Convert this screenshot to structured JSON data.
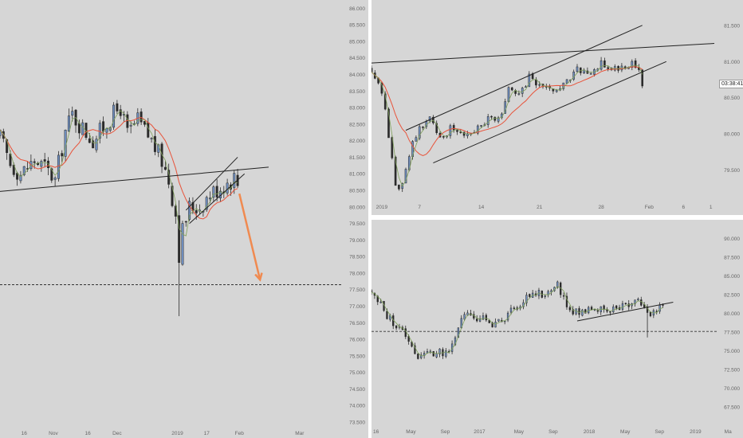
{
  "colors": {
    "background": "#d6d6d6",
    "up_candle": "#6f8fc0",
    "down_candle": "#2b2b2b",
    "ma_fast": "#7fa05a",
    "ma_slow": "#e8533a",
    "trendline": "#222222",
    "arrow": "#f08a50",
    "axis_text": "#666666",
    "dashed_level": "#333333"
  },
  "chart_data": [
    {
      "id": "left",
      "type": "candlestick",
      "title": "",
      "ylim": [
        73.5,
        86.25
      ],
      "y_ticks": [
        "73.500",
        "74.000",
        "74.500",
        "75.000",
        "75.500",
        "76.000",
        "76.500",
        "77.000",
        "77.500",
        "78.000",
        "78.500",
        "79.000",
        "79.500",
        "80.000",
        "80.500",
        "81.000",
        "81.500",
        "82.000",
        "82.500",
        "83.000",
        "83.500",
        "84.000",
        "84.500",
        "85.000",
        "85.500",
        "86.000"
      ],
      "x_labels": [
        {
          "label": "16",
          "t": 0.07
        },
        {
          "label": "Nov",
          "t": 0.155
        },
        {
          "label": "16",
          "t": 0.255
        },
        {
          "label": "Dec",
          "t": 0.34
        },
        {
          "label": "2019",
          "t": 0.515
        },
        {
          "label": "17",
          "t": 0.6
        },
        {
          "label": "Feb",
          "t": 0.695
        },
        {
          "label": "Mar",
          "t": 0.87
        }
      ],
      "x_domain": [
        0,
        100
      ],
      "anchors": [
        [
          0,
          82.1
        ],
        [
          3,
          81.3
        ],
        [
          6,
          81.0
        ],
        [
          10,
          81.4
        ],
        [
          13,
          81.2
        ],
        [
          16,
          80.8
        ],
        [
          19,
          82.3
        ],
        [
          21,
          82.8
        ],
        [
          23,
          82.5
        ],
        [
          27,
          82.0
        ],
        [
          30,
          82.4
        ],
        [
          33,
          82.8
        ],
        [
          35,
          83.0
        ],
        [
          37,
          82.2
        ],
        [
          40,
          82.6
        ],
        [
          42,
          82.3
        ],
        [
          44,
          82.0
        ],
        [
          47,
          81.4
        ],
        [
          49,
          80.8
        ],
        [
          51,
          79.8
        ],
        [
          52,
          78.6
        ],
        [
          53,
          79.3
        ],
        [
          55,
          80.0
        ],
        [
          58,
          80.0
        ],
        [
          61,
          80.4
        ],
        [
          64,
          80.6
        ],
        [
          67,
          80.8
        ],
        [
          68,
          80.9
        ],
        [
          69,
          80.7
        ]
      ],
      "candle_count": 70,
      "special_wicks": [
        {
          "i": 52,
          "low": 76.7,
          "high": 80.2
        }
      ],
      "ma_fast_lag": 3,
      "ma_slow_lag": 9,
      "lines": [
        {
          "x1": -2,
          "y1": 80.45,
          "x2": 78,
          "y2": 81.2
        },
        {
          "x1": 54,
          "y1": 79.9,
          "x2": 69,
          "y2": 81.5
        },
        {
          "x1": 55,
          "y1": 79.5,
          "x2": 71,
          "y2": 81.0
        }
      ],
      "arrow": {
        "x1": 69.5,
        "y1": 80.4,
        "x2": 75.5,
        "y2": 77.8
      },
      "dashed_level": 77.65,
      "last_price": null
    },
    {
      "id": "top-right",
      "type": "candlestick",
      "title": "",
      "ylim": [
        79.1,
        81.85
      ],
      "y_ticks": [
        "79.500",
        "80.000",
        "80.500",
        "81.000",
        "81.500"
      ],
      "x_labels": [
        {
          "label": "2019",
          "t": 0.03
        },
        {
          "label": "7",
          "t": 0.14
        },
        {
          "label": "14",
          "t": 0.32
        },
        {
          "label": "21",
          "t": 0.49
        },
        {
          "label": "28",
          "t": 0.67
        },
        {
          "label": "Feb",
          "t": 0.81
        },
        {
          "label": "6",
          "t": 0.91
        },
        {
          "label": "1",
          "t": 0.99
        }
      ],
      "x_domain": [
        0,
        100
      ],
      "anchors": [
        [
          0,
          80.9
        ],
        [
          3,
          80.6
        ],
        [
          5,
          80.0
        ],
        [
          7,
          79.3
        ],
        [
          8,
          79.2
        ],
        [
          10,
          79.5
        ],
        [
          12,
          79.9
        ],
        [
          14,
          80.1
        ],
        [
          17,
          80.2
        ],
        [
          20,
          79.9
        ],
        [
          23,
          80.1
        ],
        [
          27,
          80.0
        ],
        [
          31,
          80.1
        ],
        [
          34,
          80.2
        ],
        [
          37,
          80.2
        ],
        [
          40,
          80.6
        ],
        [
          43,
          80.5
        ],
        [
          46,
          80.8
        ],
        [
          50,
          80.6
        ],
        [
          54,
          80.6
        ],
        [
          57,
          80.7
        ],
        [
          60,
          80.9
        ],
        [
          64,
          80.8
        ],
        [
          67,
          81.0
        ],
        [
          70,
          80.9
        ],
        [
          73,
          80.9
        ],
        [
          76,
          81.0
        ],
        [
          78,
          80.9
        ],
        [
          79,
          80.7
        ]
      ],
      "candle_count": 80,
      "special_wicks": [],
      "ma_fast_lag": 3,
      "ma_slow_lag": 11,
      "lines": [
        {
          "x1": 0,
          "y1": 80.98,
          "x2": 100,
          "y2": 81.25
        },
        {
          "x1": 10,
          "y1": 80.05,
          "x2": 79,
          "y2": 81.5
        },
        {
          "x1": 18,
          "y1": 79.6,
          "x2": 86,
          "y2": 81.0
        }
      ],
      "arrow": null,
      "dashed_level": null,
      "last_price": "03:38:41"
    },
    {
      "id": "bottom-right",
      "type": "candlestick",
      "title": "",
      "ylim": [
        65.5,
        92.5
      ],
      "y_ticks": [
        "67.500",
        "70.000",
        "72.500",
        "75.000",
        "77.500",
        "80.000",
        "82.500",
        "85.000",
        "87.500",
        "90.000"
      ],
      "x_labels": [
        {
          "label": "16",
          "t": 0.0
        },
        {
          "label": "May",
          "t": 0.115
        },
        {
          "label": "Sep",
          "t": 0.215
        },
        {
          "label": "2017",
          "t": 0.315
        },
        {
          "label": "May",
          "t": 0.43
        },
        {
          "label": "Sep",
          "t": 0.53
        },
        {
          "label": "2018",
          "t": 0.635
        },
        {
          "label": "May",
          "t": 0.74
        },
        {
          "label": "Sep",
          "t": 0.84
        },
        {
          "label": "2019",
          "t": 0.945
        },
        {
          "label": "Ma",
          "t": 1.04
        }
      ],
      "x_domain": [
        0,
        100
      ],
      "anchors": [
        [
          0,
          83.0
        ],
        [
          4,
          80.0
        ],
        [
          8,
          78.0
        ],
        [
          11,
          76.5
        ],
        [
          13,
          74.5
        ],
        [
          16,
          74.5
        ],
        [
          19,
          75.0
        ],
        [
          22,
          74.5
        ],
        [
          24,
          76.0
        ],
        [
          26,
          79.5
        ],
        [
          30,
          79.5
        ],
        [
          34,
          79.0
        ],
        [
          36,
          78.5
        ],
        [
          39,
          79.0
        ],
        [
          42,
          81.0
        ],
        [
          45,
          82.0
        ],
        [
          48,
          83.0
        ],
        [
          51,
          82.5
        ],
        [
          54,
          84.0
        ],
        [
          56,
          82.0
        ],
        [
          59,
          80.0
        ],
        [
          62,
          80.5
        ],
        [
          65,
          81.0
        ],
        [
          68,
          80.0
        ],
        [
          71,
          80.5
        ],
        [
          74,
          81.0
        ],
        [
          77,
          81.5
        ],
        [
          80,
          81.0
        ],
        [
          82,
          79.5
        ],
        [
          83,
          80.5
        ],
        [
          85,
          81.0
        ]
      ],
      "candle_count": 95,
      "special_wicks": [
        {
          "i": 89,
          "low": 76.8,
          "high": 81.0
        }
      ],
      "ma_fast_lag": 3,
      "ma_slow_lag": 0,
      "lines": [
        {
          "x1": 60,
          "y1": 79.0,
          "x2": 88,
          "y2": 81.5
        }
      ],
      "arrow": null,
      "dashed_level": 77.6,
      "last_price": null
    }
  ]
}
